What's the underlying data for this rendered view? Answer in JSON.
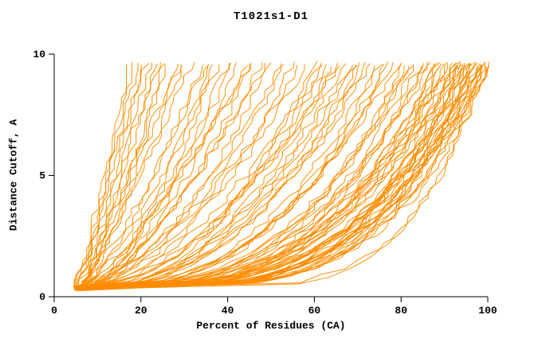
{
  "chart_data": {
    "type": "line",
    "title": "T1021s1-D1",
    "xlabel": "Percent of Residues (CA)",
    "ylabel": "Distance Cutoff, A",
    "xlim": [
      0,
      100
    ],
    "ylim": [
      0,
      10
    ],
    "x_ticks": [
      0,
      20,
      40,
      60,
      80,
      100
    ],
    "y_ticks": [
      0,
      5,
      10
    ],
    "grid": false,
    "legend": "none",
    "line_color": "#ff8c00",
    "axis_color": "#000000",
    "y_start": 0.3,
    "y_end": 9.65,
    "curve_note": "Each curve = one model: [start_percent, percent_at_cutoff_10, shape_exponent]; x(y) = x0 + (xtop - x0) * ((y-ys)/(ye-ys))^a",
    "curves": [
      [
        5,
        17,
        0.95
      ],
      [
        6,
        18,
        1.0
      ],
      [
        5,
        19,
        0.88
      ],
      [
        6,
        20,
        0.85
      ],
      [
        5,
        21,
        1.05
      ],
      [
        7,
        22,
        0.9
      ],
      [
        6,
        23,
        0.8
      ],
      [
        5,
        24,
        1.0
      ],
      [
        6,
        26,
        0.85
      ],
      [
        7,
        28,
        0.9
      ],
      [
        5,
        30,
        0.8
      ],
      [
        6,
        32,
        0.95
      ],
      [
        5,
        25,
        0.75
      ],
      [
        6,
        29,
        1.1
      ],
      [
        5,
        34,
        0.7
      ],
      [
        6,
        36,
        0.6
      ],
      [
        5,
        38,
        0.75
      ],
      [
        7,
        40,
        0.65
      ],
      [
        6,
        42,
        0.55
      ],
      [
        5,
        44,
        0.7
      ],
      [
        6,
        46,
        0.6
      ],
      [
        7,
        48,
        0.65
      ],
      [
        5,
        50,
        0.55
      ],
      [
        6,
        35,
        0.8
      ],
      [
        5,
        45,
        0.75
      ],
      [
        6,
        49,
        0.7
      ],
      [
        7,
        37,
        0.62
      ],
      [
        5,
        41,
        0.58
      ],
      [
        5,
        52,
        0.6
      ],
      [
        6,
        55,
        0.5
      ],
      [
        5,
        58,
        0.55
      ],
      [
        7,
        60,
        0.45
      ],
      [
        6,
        62,
        0.5
      ],
      [
        5,
        64,
        0.42
      ],
      [
        6,
        66,
        0.55
      ],
      [
        7,
        68,
        0.48
      ],
      [
        5,
        70,
        0.4
      ],
      [
        6,
        57,
        0.62
      ],
      [
        5,
        65,
        0.5
      ],
      [
        6,
        69,
        0.45
      ],
      [
        7,
        53,
        0.58
      ],
      [
        5,
        61,
        0.52
      ],
      [
        6,
        63,
        0.47
      ],
      [
        5,
        67,
        0.44
      ],
      [
        5,
        72,
        0.42
      ],
      [
        6,
        74,
        0.38
      ],
      [
        5,
        76,
        0.35
      ],
      [
        7,
        78,
        0.4
      ],
      [
        6,
        80,
        0.32
      ],
      [
        5,
        82,
        0.36
      ],
      [
        6,
        84,
        0.3
      ],
      [
        7,
        86,
        0.34
      ],
      [
        5,
        88,
        0.31
      ],
      [
        6,
        73,
        0.44
      ],
      [
        5,
        77,
        0.37
      ],
      [
        6,
        81,
        0.33
      ],
      [
        7,
        85,
        0.3
      ],
      [
        5,
        87,
        0.35
      ],
      [
        6,
        79,
        0.4
      ],
      [
        5,
        75,
        0.36
      ],
      [
        6,
        83,
        0.32
      ],
      [
        7,
        88,
        0.3
      ],
      [
        5,
        71,
        0.43
      ],
      [
        6,
        82,
        0.34
      ],
      [
        5,
        89,
        0.3
      ],
      [
        6,
        90,
        0.28
      ],
      [
        5,
        91,
        0.32
      ],
      [
        7,
        92,
        0.26
      ],
      [
        6,
        93,
        0.3
      ],
      [
        5,
        94,
        0.24
      ],
      [
        6,
        95,
        0.28
      ],
      [
        7,
        96,
        0.25
      ],
      [
        5,
        97,
        0.3
      ],
      [
        6,
        98,
        0.26
      ],
      [
        5,
        99,
        0.23
      ],
      [
        6,
        100,
        0.27
      ],
      [
        7,
        90,
        0.32
      ],
      [
        5,
        92,
        0.29
      ],
      [
        6,
        94,
        0.25
      ],
      [
        5,
        96,
        0.28
      ],
      [
        6,
        98,
        0.24
      ],
      [
        7,
        100,
        0.25
      ],
      [
        5,
        93,
        0.31
      ],
      [
        6,
        95,
        0.27
      ],
      [
        5,
        97,
        0.24
      ],
      [
        6,
        99,
        0.26
      ],
      [
        5,
        91,
        0.3
      ],
      [
        6,
        96,
        0.23
      ],
      [
        7,
        94,
        0.29
      ],
      [
        5,
        98,
        0.27
      ],
      [
        6,
        92,
        0.33
      ],
      [
        5,
        95,
        0.25
      ],
      [
        6,
        97,
        0.29
      ],
      [
        5,
        100,
        0.22
      ],
      [
        6,
        89,
        0.34
      ],
      [
        7,
        99,
        0.28
      ],
      [
        5,
        93,
        0.26
      ],
      [
        6,
        98,
        0.3
      ],
      [
        5,
        96,
        0.21
      ],
      [
        6,
        100,
        0.24
      ],
      [
        5,
        99,
        0.17
      ],
      [
        6,
        100,
        0.18
      ]
    ]
  }
}
